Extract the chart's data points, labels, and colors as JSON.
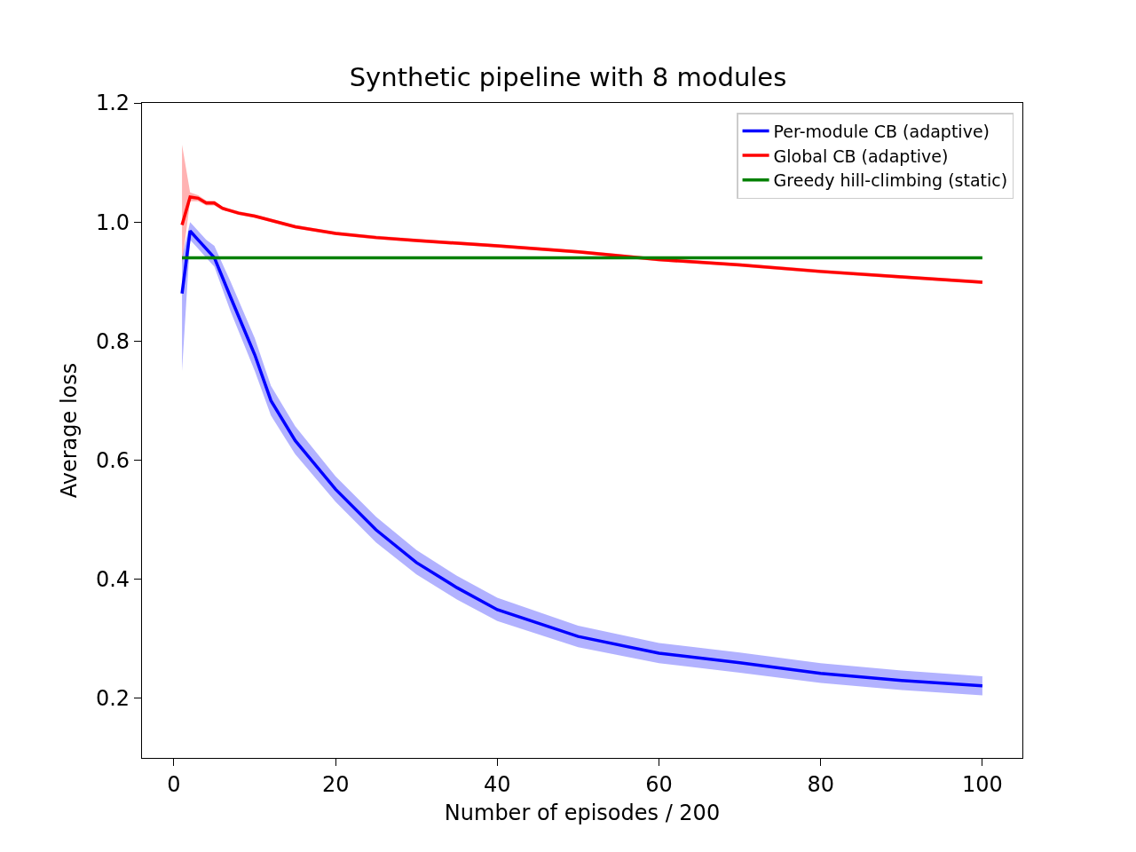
{
  "chart_data": {
    "type": "line",
    "title": "Synthetic pipeline with 8 modules",
    "xlabel": "Number of episodes / 200",
    "ylabel": "Average loss",
    "xlim": [
      -3.95,
      104.95
    ],
    "xticks": [
      0,
      20,
      40,
      60,
      80,
      100
    ],
    "ylim": [
      0.1,
      1.2
    ],
    "yticks": [
      0.2,
      0.4,
      0.6,
      0.8,
      {
        "value": 1,
        "label": "1.0"
      },
      1.2
    ],
    "grid": false,
    "legend": "top right",
    "line_style": "solid",
    "marker": "none",
    "series": [
      {
        "name": "Per-module CB (adaptive)",
        "color": "#0000ff",
        "x": [
          1,
          2,
          3,
          4,
          5,
          7,
          10,
          12,
          15,
          20,
          25,
          30,
          35,
          40,
          50,
          60,
          70,
          80,
          90,
          100
        ],
        "values": [
          0.88,
          0.985,
          0.97,
          0.955,
          0.94,
          0.874,
          0.777,
          0.7,
          0.633,
          0.551,
          0.483,
          0.428,
          0.386,
          0.349,
          0.304,
          0.276,
          0.26,
          0.242,
          0.23,
          0.221
        ],
        "lower": [
          0.75,
          0.97,
          0.955,
          0.94,
          0.925,
          0.85,
          0.75,
          0.675,
          0.61,
          0.53,
          0.462,
          0.408,
          0.366,
          0.33,
          0.286,
          0.259,
          0.243,
          0.226,
          0.214,
          0.205
        ],
        "upper": [
          0.94,
          1.0,
          0.985,
          0.97,
          0.96,
          0.9,
          0.805,
          0.725,
          0.657,
          0.573,
          0.505,
          0.449,
          0.406,
          0.369,
          0.322,
          0.293,
          0.277,
          0.259,
          0.247,
          0.237
        ]
      },
      {
        "name": "Global CB (adaptive)",
        "color": "#ff0000",
        "x": [
          1,
          2,
          3,
          4,
          5,
          6,
          8,
          10,
          15,
          20,
          25,
          30,
          40,
          50,
          60,
          70,
          80,
          90,
          100
        ],
        "values": [
          0.995,
          1.042,
          1.04,
          1.032,
          1.032,
          1.023,
          1.015,
          1.01,
          0.992,
          0.981,
          0.974,
          0.969,
          0.96,
          0.95,
          0.937,
          0.928,
          0.917,
          0.908,
          0.899
        ],
        "lower": [
          0.93,
          1.035,
          1.035,
          1.028,
          1.028,
          1.02,
          1.012,
          1.007,
          0.989,
          0.978,
          0.971,
          0.966,
          0.957,
          0.947,
          0.934,
          0.925,
          0.914,
          0.905,
          0.896
        ],
        "upper": [
          1.13,
          1.05,
          1.045,
          1.036,
          1.036,
          1.026,
          1.018,
          1.013,
          0.995,
          0.984,
          0.977,
          0.972,
          0.963,
          0.953,
          0.94,
          0.931,
          0.92,
          0.911,
          0.902
        ]
      },
      {
        "name": "Greedy hill-climbing (static)",
        "color": "#008000",
        "x": [
          1,
          100
        ],
        "values": [
          0.94,
          0.94
        ]
      }
    ]
  }
}
